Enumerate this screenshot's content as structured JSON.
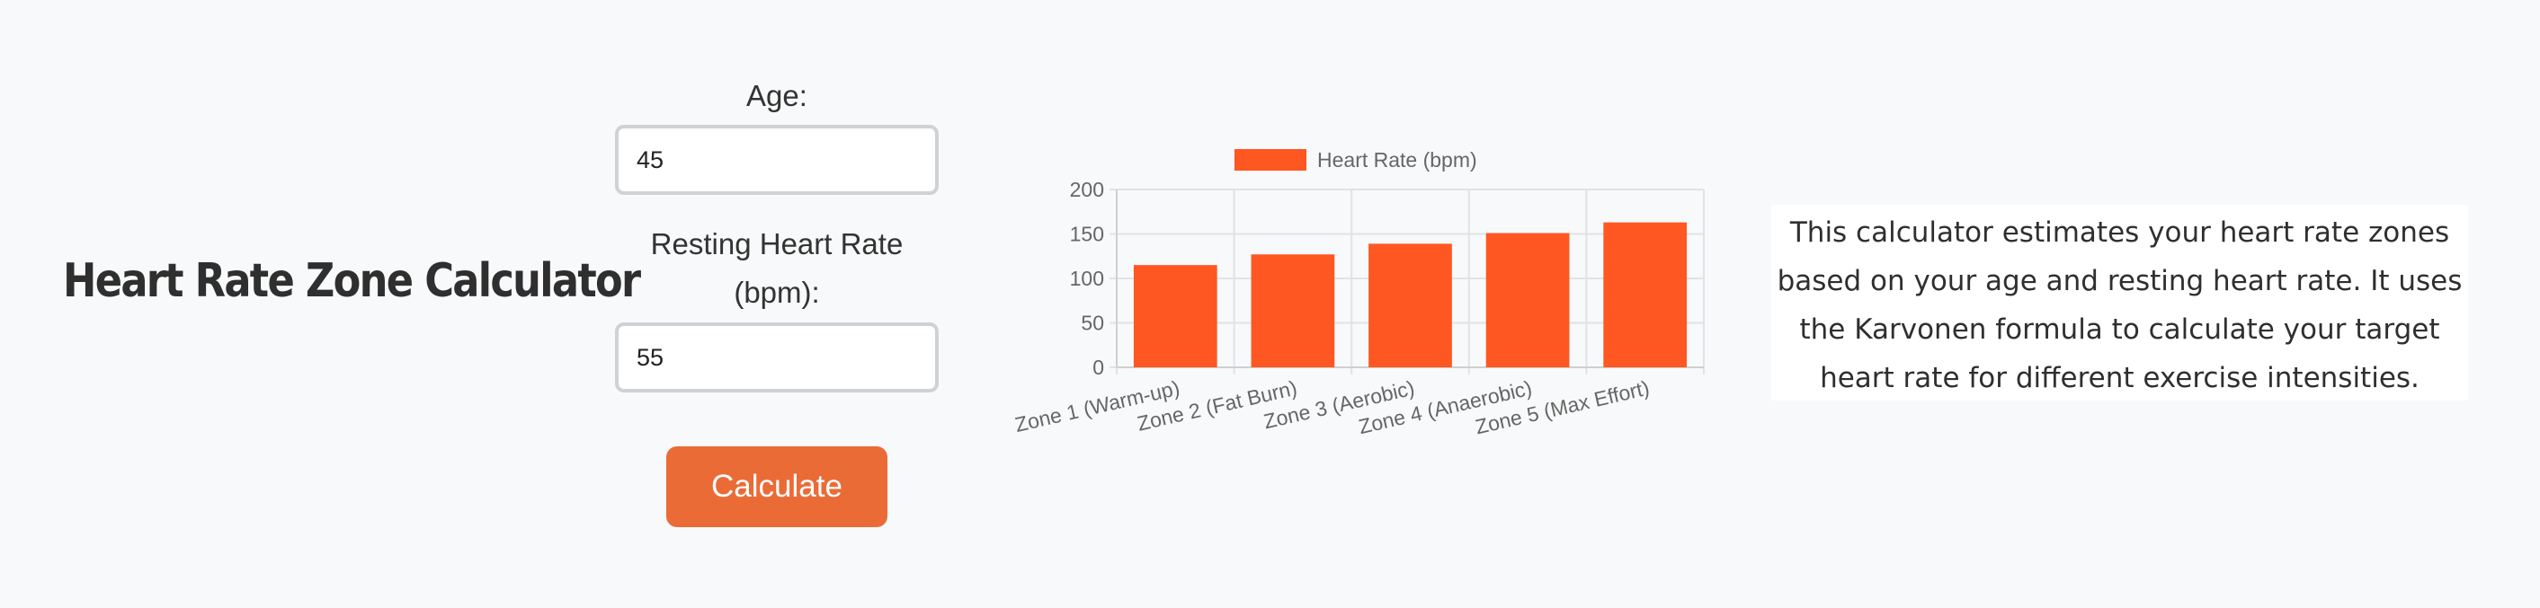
{
  "page": {
    "title": "Heart Rate Zone Calculator"
  },
  "form": {
    "age_label": "Age:",
    "age_value": "45",
    "resting_label": "Resting Heart Rate (bpm):",
    "resting_value": "55",
    "calculate_label": "Calculate"
  },
  "chart_data": {
    "type": "bar",
    "categories": [
      "Zone 1 (Warm-up)",
      "Zone 2 (Fat Burn)",
      "Zone 3 (Aerobic)",
      "Zone 4 (Anaerobic)",
      "Zone 5 (Max Effort)"
    ],
    "series": [
      {
        "name": "Heart Rate (bpm)",
        "values": [
          115,
          127,
          139,
          151,
          163
        ],
        "color": "#ff5722"
      }
    ],
    "ylim": [
      0,
      200
    ],
    "yticks": [
      0,
      50,
      100,
      150,
      200
    ],
    "grid": true,
    "legend": "top-center"
  },
  "description": {
    "text": "This calculator estimates your heart rate zones based on your age and resting heart rate. It uses the Karvonen formula to calculate your target heart rate for different exercise intensities."
  }
}
